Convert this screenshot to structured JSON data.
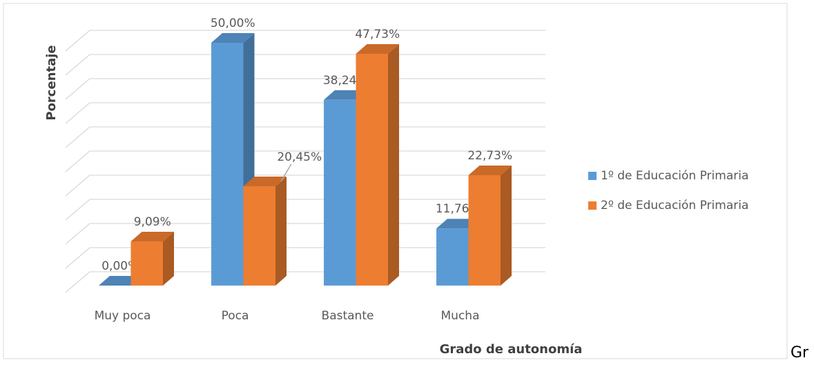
{
  "chart_data": {
    "type": "bar3d",
    "y_axis_label": "Porcentaje",
    "x_axis_label": "Grado de autonomía",
    "categories": [
      "Muy poca",
      "Poca",
      "Bastante",
      "Mucha"
    ],
    "series": [
      {
        "name": "1º de Educación Primaria",
        "color": "#5b9bd5",
        "values": [
          0,
          50,
          38.24,
          11.76
        ],
        "value_labels": [
          "0,00%",
          "50,00%",
          "38,24%",
          "11,76%"
        ]
      },
      {
        "name": "2º de Educación Primaria",
        "color": "#ed7d31",
        "values": [
          9.09,
          20.45,
          47.73,
          22.73
        ],
        "value_labels": [
          "9,09%",
          "20,45%",
          "47,73%",
          "22,73%"
        ]
      }
    ],
    "ylim": [
      0,
      50
    ],
    "yticks": [
      0,
      5,
      10,
      15,
      20,
      25,
      30,
      35,
      40,
      45,
      50
    ],
    "grid": true,
    "legend": "right"
  },
  "trailing_text": "Gr"
}
